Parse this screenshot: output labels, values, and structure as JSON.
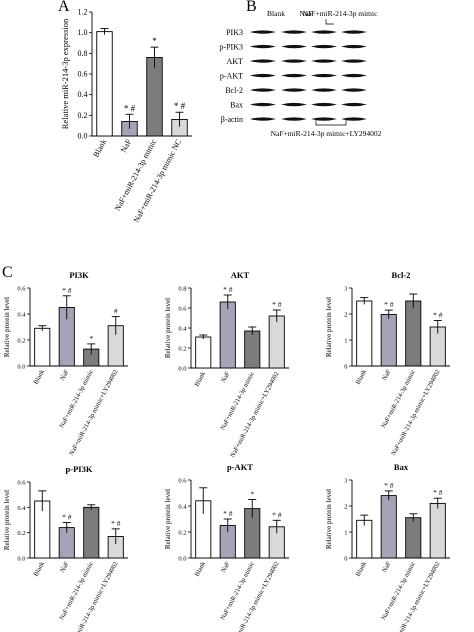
{
  "panels": {
    "A": "A",
    "B": "B",
    "C": "C"
  },
  "bar_colors": [
    "#ffffff",
    "#a4a4b8",
    "#7c7c7c",
    "#d9d9d9"
  ],
  "western_blot": {
    "header": [
      "Blank",
      "NaF",
      "NaF+miR-214-3p mimic"
    ],
    "bottom_label": "NaF+miR-214-3p mimic+LY294002",
    "proteins": [
      "PIK3",
      "p-PIK3",
      "AKT",
      "p-AKT",
      "Bcl-2",
      "Bax",
      "β-actin"
    ]
  },
  "chart_data": [
    {
      "id": "A",
      "type": "bar",
      "title": "",
      "ylabel": "Relative miR-214-3p expression",
      "ylim": [
        0,
        1.2
      ],
      "yticks": [
        "0.0",
        "0.2",
        "0.4",
        "0.6",
        "0.8",
        "1.0",
        "1.2"
      ],
      "categories": [
        "Blank",
        "NaF",
        "NaF+miR-214-3p mimic",
        "NaF+miR-214-3p mimic NC"
      ],
      "values": [
        1.01,
        0.14,
        0.76,
        0.16
      ],
      "errors": [
        0.03,
        0.07,
        0.1,
        0.07
      ],
      "annotations": [
        "",
        "* #",
        "*",
        "* #"
      ]
    },
    {
      "id": "PI3K",
      "type": "bar",
      "title": "PI3K",
      "ylabel": "Relative protein level",
      "ylim": [
        0,
        0.6
      ],
      "yticks": [
        "0.0",
        "0.2",
        "0.4",
        "0.6"
      ],
      "categories": [
        "Blank",
        "NaF",
        "NaF+miR-214-3p mimic",
        "NaF+miR-214-3p mimic+LY294002"
      ],
      "values": [
        0.29,
        0.45,
        0.13,
        0.31
      ],
      "errors": [
        0.02,
        0.09,
        0.04,
        0.07
      ],
      "annotations": [
        "",
        "* #",
        "*",
        "#"
      ]
    },
    {
      "id": "AKT",
      "type": "bar",
      "title": "AKT",
      "ylabel": "Relative protein level",
      "ylim": [
        0,
        0.8
      ],
      "yticks": [
        "0.0",
        "0.2",
        "0.4",
        "0.6",
        "0.8"
      ],
      "categories": [
        "Blank",
        "NaF",
        "NaF+miR-214-3p mimic",
        "NaF+miR-214-3p mimic+LY294002"
      ],
      "values": [
        0.31,
        0.66,
        0.37,
        0.52
      ],
      "errors": [
        0.02,
        0.07,
        0.04,
        0.06
      ],
      "annotations": [
        "",
        "* #",
        "",
        "* #"
      ]
    },
    {
      "id": "Bcl-2",
      "type": "bar",
      "title": "Bcl-2",
      "ylabel": "Relative protein level",
      "ylim": [
        0,
        3
      ],
      "yticks": [
        "0",
        "1",
        "2",
        "3"
      ],
      "categories": [
        "Blank",
        "NaF",
        "NaF+miR-214-3p mimic",
        "NaF+miR-214-3p mimic+LY294002"
      ],
      "values": [
        2.5,
        1.98,
        2.5,
        1.5
      ],
      "errors": [
        0.13,
        0.17,
        0.27,
        0.25
      ],
      "annotations": [
        "",
        "* #",
        "",
        "* #"
      ]
    },
    {
      "id": "p-PI3K",
      "type": "bar",
      "title": "p-PI3K",
      "ylabel": "Relative protein level",
      "ylim": [
        0,
        0.6
      ],
      "yticks": [
        "0.0",
        "0.2",
        "0.4",
        "0.6"
      ],
      "categories": [
        "Blank",
        "NaF",
        "NaF+miR-214-3p mimic",
        "NaF+miR-214-3p mimic+LY294002"
      ],
      "values": [
        0.45,
        0.24,
        0.4,
        0.17
      ],
      "errors": [
        0.08,
        0.04,
        0.02,
        0.06
      ],
      "annotations": [
        "",
        "* #",
        "",
        "* #"
      ]
    },
    {
      "id": "p-AKT",
      "type": "bar",
      "title": "p-AKT",
      "ylabel": "Relative protein level",
      "ylim": [
        0,
        0.6
      ],
      "yticks": [
        "0.0",
        "0.2",
        "0.4",
        "0.6"
      ],
      "categories": [
        "Blank",
        "NaF",
        "NaF+miR-214-3p mimic",
        "NaF+miR-214-3p mimic+LY294002"
      ],
      "values": [
        0.44,
        0.25,
        0.38,
        0.24
      ],
      "errors": [
        0.1,
        0.05,
        0.07,
        0.05
      ],
      "annotations": [
        "",
        "* #",
        "*",
        "* #"
      ]
    },
    {
      "id": "Bax",
      "type": "bar",
      "title": "Bax",
      "ylabel": "Relative protein level",
      "ylim": [
        0,
        3
      ],
      "yticks": [
        "0",
        "1",
        "2",
        "3"
      ],
      "categories": [
        "Blank",
        "NaF",
        "NaF+miR-214-3p mimic",
        "NaF+miR-214-3p mimic+LY294002"
      ],
      "values": [
        1.45,
        2.4,
        1.55,
        2.1
      ],
      "errors": [
        0.2,
        0.18,
        0.15,
        0.2
      ],
      "annotations": [
        "",
        "* #",
        "",
        "* #"
      ]
    }
  ]
}
